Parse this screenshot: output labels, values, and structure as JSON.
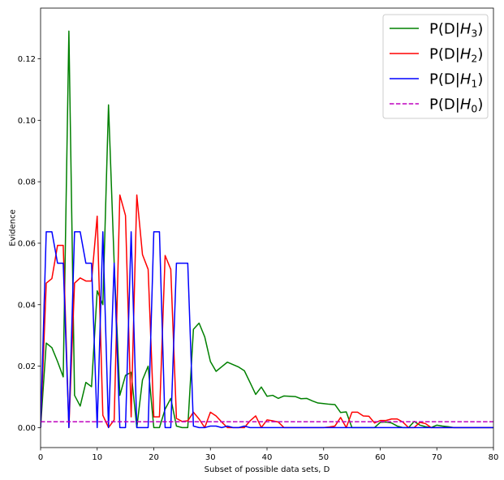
{
  "chart_data": {
    "type": "line",
    "title": "",
    "xlabel": "Subset of possible data sets, D",
    "ylabel": "Evidence",
    "xlim": [
      0,
      80
    ],
    "ylim": [
      -0.0065,
      0.1365
    ],
    "xticks": [
      0,
      10,
      20,
      30,
      40,
      50,
      60,
      70,
      80
    ],
    "yticks": [
      0.0,
      0.02,
      0.04,
      0.06,
      0.08,
      0.1,
      0.12
    ],
    "grid": false,
    "legend_position": "top-right",
    "series": [
      {
        "name": "P(D|H_3)",
        "legend_main": "P(D|",
        "legend_var": "H",
        "legend_sub": "3",
        "legend_close": ")",
        "color": "#008000",
        "dash": "",
        "points": [
          [
            0,
            0.0
          ],
          [
            1,
            0.0275
          ],
          [
            2,
            0.026
          ],
          [
            3,
            0.0215
          ],
          [
            4,
            0.0165
          ],
          [
            5,
            0.129
          ],
          [
            6,
            0.0105
          ],
          [
            7,
            0.007
          ],
          [
            8,
            0.0147
          ],
          [
            9,
            0.0133
          ],
          [
            10,
            0.0445
          ],
          [
            11,
            0.04
          ],
          [
            12,
            0.105
          ],
          [
            13,
            0.0535
          ],
          [
            14,
            0.0105
          ],
          [
            15,
            0.017
          ],
          [
            16,
            0.018
          ],
          [
            17,
            0.0
          ],
          [
            18,
            0.0155
          ],
          [
            19,
            0.02
          ],
          [
            20,
            0.0
          ],
          [
            21,
            0.0
          ],
          [
            22,
            0.006
          ],
          [
            23,
            0.0095
          ],
          [
            24,
            0.0005
          ],
          [
            25,
            0.0
          ],
          [
            26,
            0.0
          ],
          [
            27,
            0.032
          ],
          [
            28,
            0.034
          ],
          [
            29,
            0.0295
          ],
          [
            30,
            0.0215
          ],
          [
            31,
            0.0183
          ],
          [
            32,
            0.0198
          ],
          [
            33,
            0.0213
          ],
          [
            34,
            0.0205
          ],
          [
            35,
            0.0197
          ],
          [
            36,
            0.0185
          ],
          [
            37,
            0.0147
          ],
          [
            38,
            0.0108
          ],
          [
            39,
            0.0132
          ],
          [
            40,
            0.0102
          ],
          [
            41,
            0.0105
          ],
          [
            42,
            0.0095
          ],
          [
            43,
            0.0103
          ],
          [
            44,
            0.0102
          ],
          [
            45,
            0.0101
          ],
          [
            46,
            0.0094
          ],
          [
            47,
            0.0095
          ],
          [
            48,
            0.0087
          ],
          [
            49,
            0.008
          ],
          [
            50,
            0.0078
          ],
          [
            51,
            0.0076
          ],
          [
            52,
            0.0075
          ],
          [
            53,
            0.0049
          ],
          [
            54,
            0.0051
          ],
          [
            55,
            0.0
          ],
          [
            56,
            0.0
          ],
          [
            57,
            0.0
          ],
          [
            58,
            0.0
          ],
          [
            59,
            0.0
          ],
          [
            60,
            0.0017
          ],
          [
            61,
            0.0018
          ],
          [
            62,
            0.0015
          ],
          [
            63,
            0.0005
          ],
          [
            64,
            0.0
          ],
          [
            65,
            0.0
          ],
          [
            66,
            0.002
          ],
          [
            67,
            0.0008
          ],
          [
            68,
            0.0003
          ],
          [
            69,
            0.0
          ],
          [
            70,
            0.0008
          ],
          [
            71,
            0.0005
          ],
          [
            72,
            0.0003
          ],
          [
            73,
            0.0
          ],
          [
            74,
            0.0
          ],
          [
            75,
            0.0
          ],
          [
            76,
            0.0
          ],
          [
            77,
            0.0
          ],
          [
            78,
            0.0
          ],
          [
            79,
            0.0
          ],
          [
            80,
            0.0
          ]
        ]
      },
      {
        "name": "P(D|H_2)",
        "legend_main": "P(D|",
        "legend_var": "H",
        "legend_sub": "2",
        "legend_close": ")",
        "color": "#ff0000",
        "dash": "",
        "points": [
          [
            0,
            0.0
          ],
          [
            1,
            0.047
          ],
          [
            2,
            0.0485
          ],
          [
            3,
            0.0593
          ],
          [
            4,
            0.0593
          ],
          [
            5,
            0.0
          ],
          [
            6,
            0.047
          ],
          [
            7,
            0.0487
          ],
          [
            8,
            0.0477
          ],
          [
            9,
            0.0477
          ],
          [
            10,
            0.0688
          ],
          [
            11,
            0.004
          ],
          [
            12,
            0.0
          ],
          [
            13,
            0.0025
          ],
          [
            14,
            0.0757
          ],
          [
            15,
            0.069
          ],
          [
            16,
            0.0035
          ],
          [
            17,
            0.0757
          ],
          [
            18,
            0.0563
          ],
          [
            19,
            0.0515
          ],
          [
            20,
            0.0035
          ],
          [
            21,
            0.0035
          ],
          [
            22,
            0.056
          ],
          [
            23,
            0.0515
          ],
          [
            24,
            0.003
          ],
          [
            25,
            0.002
          ],
          [
            26,
            0.0022
          ],
          [
            27,
            0.005
          ],
          [
            28,
            0.0028
          ],
          [
            29,
            0.0
          ],
          [
            30,
            0.005
          ],
          [
            31,
            0.0038
          ],
          [
            32,
            0.0018
          ],
          [
            33,
            0.0
          ],
          [
            34,
            0.0
          ],
          [
            35,
            0.0
          ],
          [
            36,
            0.0
          ],
          [
            37,
            0.0022
          ],
          [
            38,
            0.0038
          ],
          [
            39,
            0.0
          ],
          [
            40,
            0.0025
          ],
          [
            41,
            0.0022
          ],
          [
            42,
            0.0018
          ],
          [
            43,
            0.0
          ],
          [
            44,
            0.0
          ],
          [
            45,
            0.0
          ],
          [
            46,
            0.0
          ],
          [
            47,
            0.0
          ],
          [
            48,
            0.0
          ],
          [
            49,
            0.0
          ],
          [
            50,
            0.0
          ],
          [
            51,
            0.0002
          ],
          [
            52,
            0.0005
          ],
          [
            53,
            0.0033
          ],
          [
            54,
            0.0
          ],
          [
            55,
            0.005
          ],
          [
            56,
            0.005
          ],
          [
            57,
            0.0038
          ],
          [
            58,
            0.0037
          ],
          [
            59,
            0.0015
          ],
          [
            60,
            0.0023
          ],
          [
            61,
            0.0023
          ],
          [
            62,
            0.0028
          ],
          [
            63,
            0.0028
          ],
          [
            64,
            0.0018
          ],
          [
            65,
            0.0
          ],
          [
            66,
            0.0
          ],
          [
            67,
            0.0017
          ],
          [
            68,
            0.0013
          ],
          [
            69,
            0.0
          ],
          [
            70,
            0.0
          ],
          [
            71,
            0.0
          ],
          [
            72,
            0.0
          ],
          [
            73,
            0.0
          ],
          [
            74,
            0.0
          ],
          [
            75,
            0.0
          ],
          [
            76,
            0.0
          ],
          [
            77,
            0.0
          ],
          [
            78,
            0.0
          ],
          [
            79,
            0.0
          ],
          [
            80,
            0.0
          ]
        ]
      },
      {
        "name": "P(D|H_1)",
        "legend_main": "P(D|",
        "legend_var": "H",
        "legend_sub": "1",
        "legend_close": ")",
        "color": "#0000ff",
        "dash": "",
        "points": [
          [
            0,
            0.0
          ],
          [
            1,
            0.0637
          ],
          [
            2,
            0.0637
          ],
          [
            3,
            0.0535
          ],
          [
            4,
            0.0535
          ],
          [
            5,
            0.0
          ],
          [
            6,
            0.0637
          ],
          [
            7,
            0.0637
          ],
          [
            8,
            0.0535
          ],
          [
            9,
            0.0535
          ],
          [
            10,
            0.0
          ],
          [
            11,
            0.0637
          ],
          [
            12,
            0.0
          ],
          [
            13,
            0.0535
          ],
          [
            14,
            0.0
          ],
          [
            15,
            0.0
          ],
          [
            16,
            0.0637
          ],
          [
            17,
            0.0
          ],
          [
            18,
            0.0
          ],
          [
            19,
            0.0
          ],
          [
            20,
            0.0637
          ],
          [
            21,
            0.0637
          ],
          [
            22,
            0.0
          ],
          [
            23,
            0.0
          ],
          [
            24,
            0.0535
          ],
          [
            25,
            0.0535
          ],
          [
            26,
            0.0535
          ],
          [
            27,
            0.0005
          ],
          [
            28,
            0.0
          ],
          [
            29,
            0.0
          ],
          [
            30,
            0.0005
          ],
          [
            31,
            0.0005
          ],
          [
            32,
            0.0
          ],
          [
            33,
            0.0005
          ],
          [
            34,
            0.0
          ],
          [
            35,
            0.0
          ],
          [
            36,
            0.0005
          ],
          [
            37,
            0.0
          ],
          [
            38,
            0.0
          ],
          [
            39,
            0.0
          ],
          [
            40,
            0.0
          ],
          [
            41,
            0.0
          ],
          [
            42,
            0.0
          ],
          [
            43,
            0.0
          ],
          [
            44,
            0.0
          ],
          [
            45,
            0.0
          ],
          [
            46,
            0.0
          ],
          [
            47,
            0.0
          ],
          [
            48,
            0.0
          ],
          [
            49,
            0.0
          ],
          [
            50,
            0.0
          ],
          [
            51,
            0.0
          ],
          [
            52,
            0.0
          ],
          [
            53,
            0.0
          ],
          [
            54,
            0.0
          ],
          [
            55,
            0.0
          ],
          [
            56,
            0.0
          ],
          [
            57,
            0.0
          ],
          [
            58,
            0.0
          ],
          [
            59,
            0.0
          ],
          [
            60,
            0.0
          ],
          [
            61,
            0.0
          ],
          [
            62,
            0.0
          ],
          [
            63,
            0.0
          ],
          [
            64,
            0.0
          ],
          [
            65,
            0.0
          ],
          [
            66,
            0.0
          ],
          [
            67,
            0.0
          ],
          [
            68,
            0.0
          ],
          [
            69,
            0.0
          ],
          [
            70,
            0.0
          ],
          [
            71,
            0.0
          ],
          [
            72,
            0.0
          ],
          [
            73,
            0.0
          ],
          [
            74,
            0.0
          ],
          [
            75,
            0.0
          ],
          [
            76,
            0.0
          ],
          [
            77,
            0.0
          ],
          [
            78,
            0.0
          ],
          [
            79,
            0.0
          ],
          [
            80,
            0.0
          ]
        ]
      },
      {
        "name": "P(D|H_0)",
        "legend_main": "P(D|",
        "legend_var": "H",
        "legend_sub": "0",
        "legend_close": ")",
        "color": "#bf00bf",
        "dash": "dashed",
        "points": [
          [
            0,
            0.0019
          ],
          [
            80,
            0.0019
          ]
        ]
      }
    ]
  }
}
